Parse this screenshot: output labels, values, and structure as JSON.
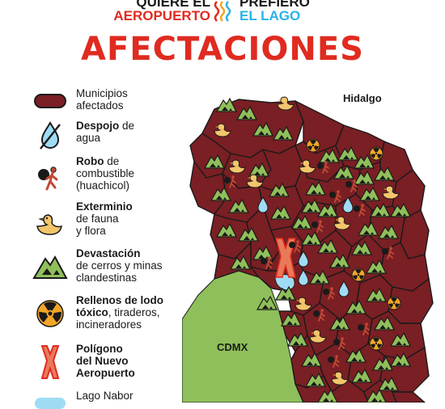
{
  "header": {
    "left_line1": "QUIERE EL",
    "left_line2": "AEROPUERTO",
    "right_line1": "PREFIERO",
    "right_line2": "EL LAGO"
  },
  "title": "AFECTACIONES",
  "legend": [
    {
      "icon": "municipality-swatch",
      "bold": "",
      "text": "Municipios afectados",
      "lines": [
        "Municipios",
        "afectados"
      ]
    },
    {
      "icon": "water-drop-crossed-icon",
      "bold": "Despojo",
      "rest": " de",
      "line2": "agua",
      "line3": ""
    },
    {
      "icon": "fuel-thief-icon",
      "bold": "Robo",
      "rest": " de",
      "line2": "combustible",
      "line3": "(huachicol)"
    },
    {
      "icon": "duck-icon",
      "bold": "Exterminio",
      "rest": "",
      "line2": "de fauna",
      "line3": "y flora"
    },
    {
      "icon": "mountain-mine-icon",
      "bold": "Devastación",
      "rest": "",
      "line2": "de cerros y minas",
      "line3": "clandestinas"
    },
    {
      "icon": "radioactive-icon",
      "bold": "Rellenos de lodo",
      "rest": "",
      "line2": "tóxico, tiraderos,",
      "line3": "incineradores",
      "line2_bold": "tóxico"
    },
    {
      "icon": "airport-polygon-icon",
      "bold": "Polígono",
      "rest": "",
      "line2": "del Nuevo",
      "line3": "Aeropuerto",
      "all_bold": true
    },
    {
      "icon": "lake-swatch",
      "bold": "",
      "rest": "Lago Nabor",
      "line2": "",
      "line3": ""
    }
  ],
  "map": {
    "north_label": "Hidalgo",
    "city_label": "CDMX"
  },
  "colors": {
    "municipality": "#7a1f24",
    "border": "#1a1a1a",
    "cdmx": "#8fbf5a",
    "lake": "#9fdcf3",
    "accent": "#e02b20",
    "mountain": "#8fbf5a",
    "duck": "#f3c56b"
  }
}
